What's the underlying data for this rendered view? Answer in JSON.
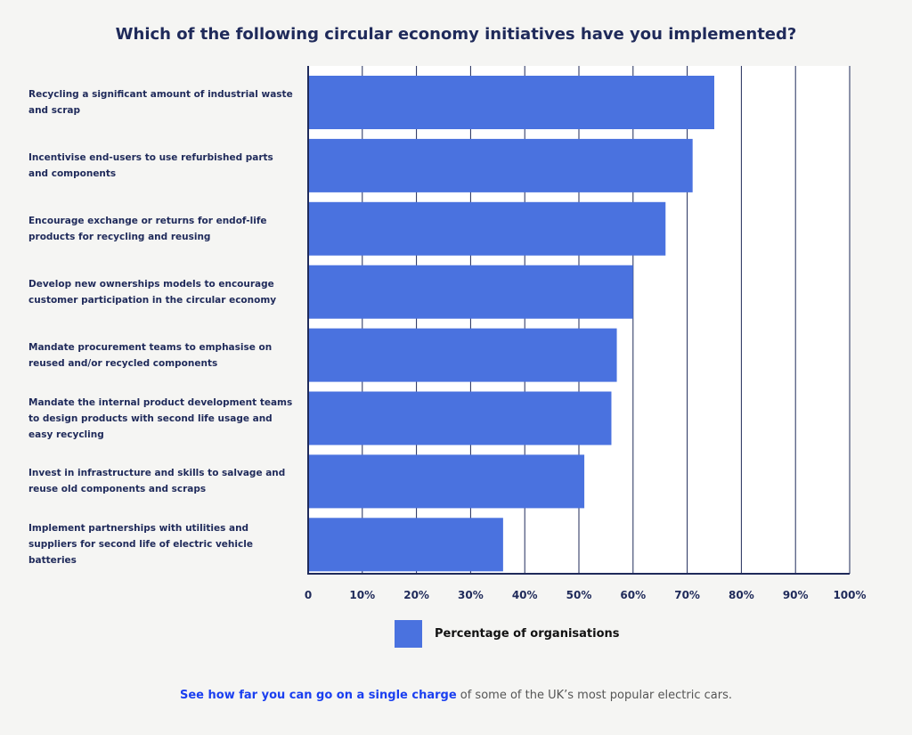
{
  "chart_data": {
    "type": "bar",
    "orientation": "horizontal",
    "title": "Which of the following circular economy initiatives have you implemented?",
    "categories": [
      "Recycling a significant amount of industrial waste and scrap",
      "Incentivise end-users to use refurbished parts and components",
      "Encourage exchange or returns for endof-life products for recycling and reusing",
      "Develop new ownerships models to encourage customer participation in the circular economy",
      "Mandate procurement teams to emphasise on reused and/or recycled components",
      "Mandate the internal product development teams to design products with second life usage and easy recycling",
      "Invest in infrastructure and skills to salvage and reuse old components and scraps",
      "Implement partnerships with utilities and suppliers for second life of electric vehicle batteries"
    ],
    "series": [
      {
        "name": "Percentage of organisations",
        "values": [
          75,
          71,
          66,
          60,
          57,
          56,
          51,
          36
        ]
      }
    ],
    "xlim": [
      0,
      100
    ],
    "xticks": [
      "0",
      "10%",
      "20%",
      "30%",
      "40%",
      "50%",
      "60%",
      "70%",
      "80%",
      "90%",
      "100%"
    ],
    "grid": true,
    "legend_position": "bottom",
    "colors": {
      "bar": "#4a72df",
      "grid": "#1f2a5a",
      "plot_bg": "#ffffff"
    }
  },
  "footer": {
    "link_text": "See how far you can go on a single charge",
    "rest_text": " of some of the UK’s most popular electric cars."
  }
}
